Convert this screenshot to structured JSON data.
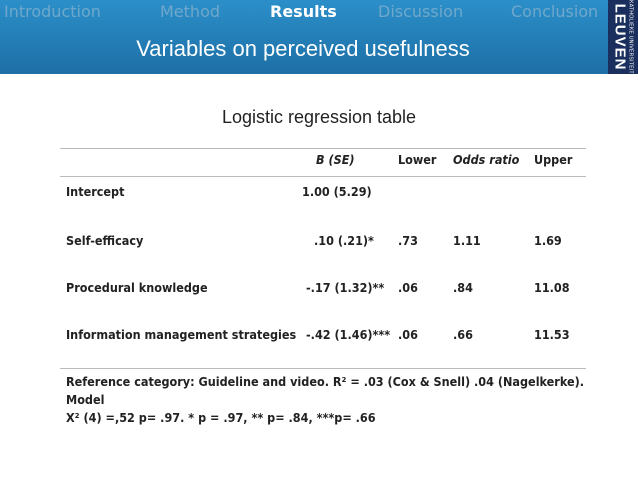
{
  "nav": {
    "items": [
      {
        "label": "Introduction",
        "active": false
      },
      {
        "label": "Method",
        "active": false
      },
      {
        "label": "Results",
        "active": true
      },
      {
        "label": "Discussion",
        "active": false
      },
      {
        "label": "Conclusion",
        "active": false
      }
    ]
  },
  "header": {
    "title": "Variables on perceived usefulness",
    "logo_small": "KATHOLIEKE UNIVERSITEIT",
    "logo_big": "LEUVEN"
  },
  "subtitle": "Logistic regression table",
  "table": {
    "headers": [
      "",
      "B (SE)",
      "Lower",
      "Odds ratio",
      "Upper"
    ],
    "rows": [
      {
        "label": "Intercept",
        "b": "1.00 (5.29)",
        "lower": "",
        "odds": "",
        "upper": ""
      },
      {
        "label": "Self-efficacy",
        "b": ".10 (.21)*",
        "lower": ".73",
        "odds": "1.11",
        "upper": "1.69"
      },
      {
        "label": "Procedural knowledge",
        "b": "-.17 (1.32)**",
        "lower": ".06",
        "odds": ".84",
        "upper": "11.08"
      },
      {
        "label": "Information management strategies",
        "b": "-.42 (1.46)***",
        "lower": ".06",
        "odds": ".66",
        "upper": "11.53"
      }
    ],
    "footnote_line1": "Reference category: Guideline and video. R² = .03 (Cox & Snell) .04 (Nagelkerke). Model",
    "footnote_line2": "X² (4) =,52 p= .97. * p = .97, ** p= .84, ***p= .66"
  },
  "colors": {
    "header_top": "#2c8fc9",
    "header_bottom": "#1d6fa6",
    "logo_bg": "#1a2f5e",
    "nav_inactive": "#6fa8cc"
  }
}
